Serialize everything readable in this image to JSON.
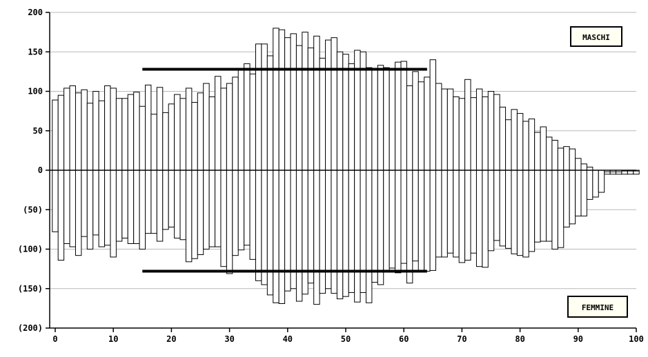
{
  "chart_data": {
    "type": "bar",
    "title": "",
    "xlabel": "",
    "ylabel": "",
    "x_ticks": [
      "0",
      "10",
      "20",
      "30",
      "40",
      "50",
      "60",
      "70",
      "80",
      "90",
      "100"
    ],
    "y_ticks": [
      "200",
      "150",
      "100",
      "50",
      "0",
      "(50)",
      "(100)",
      "(150)",
      "(200)"
    ],
    "y_tick_values": [
      200,
      150,
      100,
      50,
      0,
      -50,
      -100,
      -150,
      -200
    ],
    "xlim": [
      0,
      100
    ],
    "ylim": [
      -200,
      200
    ],
    "grid": true,
    "legend": [
      {
        "label": "MASCHI",
        "position": "top-right"
      },
      {
        "label": "FEMMINE",
        "position": "bottom-right"
      }
    ],
    "x": [
      0,
      1,
      2,
      3,
      4,
      5,
      6,
      7,
      8,
      9,
      10,
      11,
      12,
      13,
      14,
      15,
      16,
      17,
      18,
      19,
      20,
      21,
      22,
      23,
      24,
      25,
      26,
      27,
      28,
      29,
      30,
      31,
      32,
      33,
      34,
      35,
      36,
      37,
      38,
      39,
      40,
      41,
      42,
      43,
      44,
      45,
      46,
      47,
      48,
      49,
      50,
      51,
      52,
      53,
      54,
      55,
      56,
      57,
      58,
      59,
      60,
      61,
      62,
      63,
      64,
      65,
      66,
      67,
      68,
      69,
      70,
      71,
      72,
      73,
      74,
      75,
      76,
      77,
      78,
      79,
      80,
      81,
      82,
      83,
      84,
      85,
      86,
      87,
      88,
      89,
      90,
      91,
      92,
      93,
      94,
      95,
      96,
      97,
      98,
      99,
      100
    ],
    "series": [
      {
        "name": "MASCHI",
        "values": [
          89,
          95,
          104,
          107,
          98,
          102,
          85,
          100,
          88,
          107,
          104,
          91,
          91,
          96,
          99,
          81,
          108,
          71,
          105,
          73,
          84,
          96,
          91,
          104,
          86,
          98,
          110,
          93,
          119,
          104,
          110,
          118,
          128,
          135,
          122,
          160,
          160,
          145,
          180,
          178,
          168,
          173,
          158,
          175,
          155,
          170,
          142,
          165,
          168,
          150,
          147,
          135,
          152,
          150,
          130,
          128,
          133,
          130,
          127,
          137,
          138,
          107,
          125,
          112,
          118,
          140,
          110,
          103,
          103,
          93,
          91,
          115,
          92,
          103,
          93,
          100,
          96,
          80,
          64,
          77,
          72,
          62,
          65,
          48,
          55,
          42,
          38,
          28,
          30,
          27,
          15,
          8,
          4,
          -5,
          -2,
          -5,
          -5,
          -5,
          -5,
          -5,
          -5
        ]
      },
      {
        "name": "FEMMINE",
        "values": [
          -78,
          -114,
          -93,
          -97,
          -108,
          -84,
          -100,
          -82,
          -97,
          -95,
          -110,
          -90,
          -86,
          -93,
          -93,
          -100,
          -80,
          -80,
          -90,
          -75,
          -72,
          -86,
          -88,
          -116,
          -112,
          -107,
          -100,
          -97,
          -97,
          -122,
          -131,
          -108,
          -101,
          -95,
          -113,
          -140,
          -145,
          -158,
          -168,
          -169,
          -153,
          -150,
          -166,
          -157,
          -143,
          -170,
          -156,
          -150,
          -156,
          -163,
          -160,
          -155,
          -167,
          -155,
          -168,
          -142,
          -145,
          -128,
          -124,
          -130,
          -118,
          -143,
          -115,
          -128,
          -128,
          -127,
          -110,
          -110,
          -105,
          -110,
          -117,
          -114,
          -105,
          -122,
          -123,
          -102,
          -89,
          -96,
          -99,
          -106,
          -108,
          -110,
          -103,
          -91,
          -90,
          -90,
          -100,
          -98,
          -72,
          -68,
          -58,
          -58,
          -37,
          -34,
          -28,
          -2,
          -2,
          -2,
          -1,
          -1,
          -1
        ]
      }
    ],
    "reference_lines": [
      {
        "x_start": 15,
        "x_end": 64,
        "y": 128
      },
      {
        "x_start": 15,
        "x_end": 64,
        "y": -128
      }
    ]
  }
}
